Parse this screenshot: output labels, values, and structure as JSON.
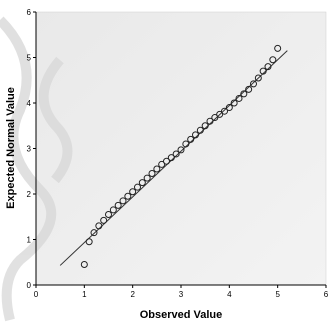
{
  "chart_data": {
    "type": "scatter",
    "subtype": "normal-qq",
    "xlabel": "Observed Value",
    "ylabel": "Expected Normal Value",
    "xlim": [
      0,
      6
    ],
    "ylim": [
      0,
      6
    ],
    "xticks": [
      "0",
      "1",
      "2",
      "3",
      "4",
      "5",
      "6"
    ],
    "yticks": [
      "0",
      "1",
      "2",
      "3",
      "4",
      "5",
      "6"
    ],
    "grid": false,
    "legend": "none",
    "reference_line": {
      "x": [
        0.5,
        5.2
      ],
      "y": [
        0.43,
        5.15
      ]
    },
    "series": [
      {
        "marker": "open-circle",
        "x": [
          1.0,
          1.1,
          1.2,
          1.3,
          1.4,
          1.5,
          1.6,
          1.7,
          1.8,
          1.9,
          2.0,
          2.1,
          2.2,
          2.3,
          2.4,
          2.5,
          2.6,
          2.7,
          2.8,
          2.9,
          3.0,
          3.1,
          3.2,
          3.3,
          3.4,
          3.5,
          3.6,
          3.7,
          3.8,
          3.9,
          4.0,
          4.1,
          4.2,
          4.3,
          4.4,
          4.5,
          4.6,
          4.7,
          4.8,
          4.9,
          5.0
        ],
        "y": [
          0.45,
          0.95,
          1.15,
          1.3,
          1.42,
          1.55,
          1.65,
          1.75,
          1.85,
          1.95,
          2.05,
          2.15,
          2.25,
          2.35,
          2.45,
          2.55,
          2.65,
          2.72,
          2.8,
          2.88,
          2.97,
          3.1,
          3.2,
          3.3,
          3.4,
          3.5,
          3.6,
          3.68,
          3.75,
          3.82,
          3.9,
          4.0,
          4.1,
          4.2,
          4.3,
          4.42,
          4.55,
          4.7,
          4.8,
          4.95,
          5.2
        ]
      }
    ]
  }
}
